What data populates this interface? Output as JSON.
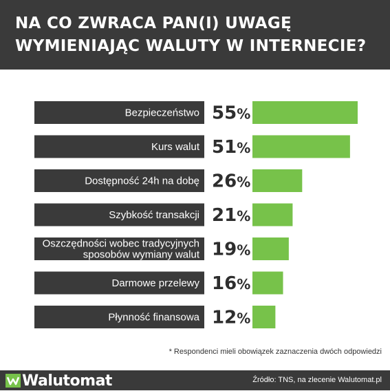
{
  "header": {
    "title_line1": "NA CO ZWRACA PAN(I) UWAGĘ",
    "title_line2": "WYMIENIAJĄC WALUTY W INTERNECIE?"
  },
  "chart_data": {
    "type": "bar",
    "orientation": "horizontal",
    "categories": [
      [
        "Bezpieczeństwo"
      ],
      [
        "Kurs walut"
      ],
      [
        "Dostępność 24h na dobę"
      ],
      [
        "Szybkość transakcji"
      ],
      [
        "Oszczędności wobec tradycyjnych",
        "sposobów wymiany walut"
      ],
      [
        "Darmowe przelewy"
      ],
      [
        "Płynność finansowa"
      ]
    ],
    "values": [
      55,
      51,
      26,
      21,
      19,
      16,
      12
    ],
    "value_labels": [
      "55",
      "51",
      "26",
      "21",
      "19",
      "16",
      "12"
    ],
    "value_unit": "%",
    "colors": {
      "label_bar": "#3a3a3a",
      "value_box": "#ffffff",
      "value_bar": "#77c24a"
    },
    "grid": false,
    "legend": "none"
  },
  "note": "* Respondenci mieli obowiązek zaznaczenia  dwóch odpowiedzi",
  "footer": {
    "logo_text": "Walutomat",
    "logo_icon": "walutomat-logo-icon",
    "source": "Źródło: TNS, na zlecenie Walutomat.pl"
  }
}
